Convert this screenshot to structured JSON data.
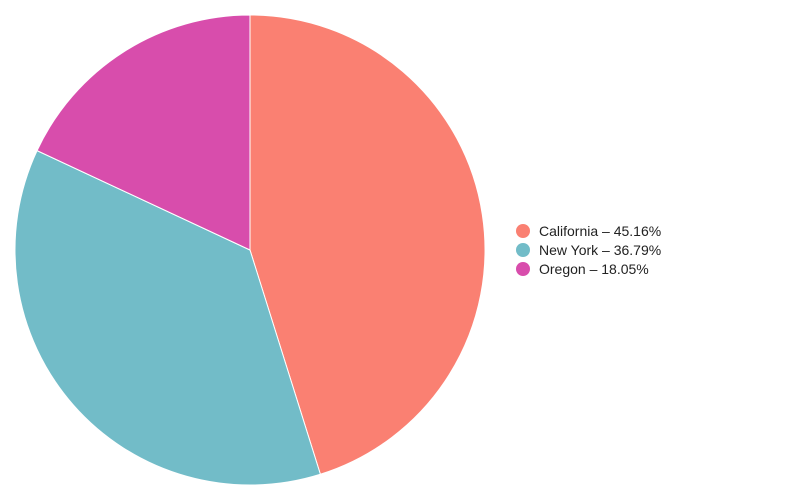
{
  "chart_data": {
    "type": "pie",
    "legend_position": "right",
    "slices": [
      {
        "label": "California",
        "value": 45.16,
        "legend_text": "California – 45.16%",
        "color": "#fa8072"
      },
      {
        "label": "New York",
        "value": 36.79,
        "legend_text": "New York – 36.79%",
        "color": "#72bcc8"
      },
      {
        "label": "Oregon",
        "value": 18.05,
        "legend_text": "Oregon – 18.05%",
        "color": "#d84dac"
      }
    ]
  }
}
